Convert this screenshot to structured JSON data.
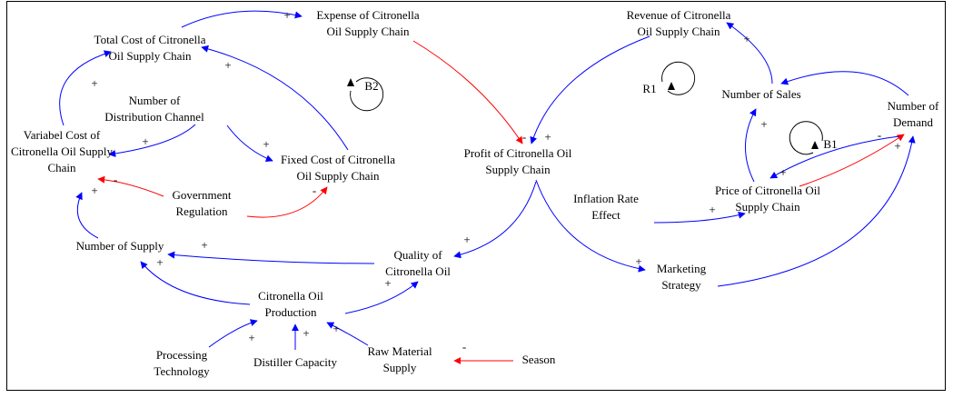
{
  "nodes": [
    {
      "lines": [
        "Expense of Citronella",
        "Oil Supply Chain"
      ]
    },
    {
      "lines": [
        "Total Cost of Citronella",
        "Oil Supply Chain"
      ]
    },
    {
      "lines": [
        "Number of",
        "Distribution Channel"
      ]
    },
    {
      "lines": [
        "Variabel Cost of",
        "Citronella Oil Supply",
        "Chain"
      ]
    },
    {
      "lines": [
        "Fixed Cost of Citronella",
        "Oil Supply Chain"
      ]
    },
    {
      "lines": [
        "Government",
        "Regulation"
      ]
    },
    {
      "lines": [
        "Number of Supply"
      ]
    },
    {
      "lines": [
        "Quality of",
        "Citronella Oil"
      ]
    },
    {
      "lines": [
        "Citronella Oil",
        "Production"
      ]
    },
    {
      "lines": [
        "Processing",
        "Technology"
      ]
    },
    {
      "lines": [
        "Distiller Capacity"
      ]
    },
    {
      "lines": [
        "Raw Material",
        "Supply"
      ]
    },
    {
      "lines": [
        "Season"
      ]
    },
    {
      "lines": [
        "Profit of Citronella Oil",
        "Supply Chain"
      ]
    },
    {
      "lines": [
        "Revenue of Citronella",
        "Oil Supply Chain"
      ]
    },
    {
      "lines": [
        "Number of Sales"
      ]
    },
    {
      "lines": [
        "Number of",
        "Demand"
      ]
    },
    {
      "lines": [
        "Inflation Rate",
        "Effect"
      ]
    },
    {
      "lines": [
        "Price of Citronella Oil",
        "Supply Chain"
      ]
    },
    {
      "lines": [
        "Marketing",
        "Strategy"
      ]
    }
  ],
  "links": [
    {
      "from": 1,
      "to": 0,
      "sign": "+"
    },
    {
      "from": 0,
      "to": 13,
      "sign": "-"
    },
    {
      "from": 14,
      "to": 13,
      "sign": "+"
    },
    {
      "from": 3,
      "to": 1,
      "sign": "+"
    },
    {
      "from": 4,
      "to": 1,
      "sign": "+"
    },
    {
      "from": 2,
      "to": 3,
      "sign": "+"
    },
    {
      "from": 2,
      "to": 4,
      "sign": "+"
    },
    {
      "from": 5,
      "to": 3,
      "sign": "-"
    },
    {
      "from": 5,
      "to": 4,
      "sign": "-"
    },
    {
      "from": 6,
      "to": 3,
      "sign": "+"
    },
    {
      "from": 7,
      "to": 6,
      "sign": "+"
    },
    {
      "from": 13,
      "to": 7,
      "sign": "+"
    },
    {
      "from": 8,
      "to": 6,
      "sign": "+"
    },
    {
      "from": 8,
      "to": 7,
      "sign": "+"
    },
    {
      "from": 9,
      "to": 8,
      "sign": "+"
    },
    {
      "from": 10,
      "to": 8,
      "sign": "+"
    },
    {
      "from": 11,
      "to": 8,
      "sign": "+"
    },
    {
      "from": 12,
      "to": 11,
      "sign": "-"
    },
    {
      "from": 13,
      "to": 19,
      "sign": "+"
    },
    {
      "from": 19,
      "to": 16,
      "sign": "+"
    },
    {
      "from": 17,
      "to": 18,
      "sign": "+"
    },
    {
      "from": 18,
      "to": 15,
      "sign": "+"
    },
    {
      "from": 15,
      "to": 14,
      "sign": "+"
    },
    {
      "from": 16,
      "to": 15
    },
    {
      "from": 18,
      "to": 16,
      "sign": "-"
    },
    {
      "from": 16,
      "to": 18,
      "sign": "+"
    }
  ],
  "loops": [
    "B2",
    "R1",
    "B1"
  ]
}
